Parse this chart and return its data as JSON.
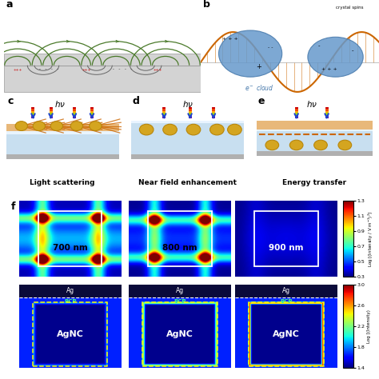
{
  "bg_color": "#ffffff",
  "panel_a_bg": "#d3d3d3",
  "panel_b_bg": "#ffffff",
  "panel_c_label": "Light scattering",
  "panel_d_label": "Near field enhancement",
  "panel_e_label": "Energy transfer",
  "green_arc_color": "#4a7a2a",
  "gray_arc_color": "#555555",
  "orange_wave_color": "#cc6600",
  "blue_sphere_color": "#6699cc",
  "gold_sphere_color": "#d4a520",
  "gold_edge_color": "#b8860b",
  "light_blue_bg": "#c8dff0",
  "peach_bg": "#e8b87a",
  "gray_base_color": "#b0b0b0",
  "dark_navy": "#0a0a3a",
  "top_row_nm_labels": [
    "700 nm",
    "800 nm",
    "900 nm"
  ],
  "colorbar1_min": 0.3,
  "colorbar1_max": 1.3,
  "colorbar1_ticks": [
    0.3,
    0.5,
    0.7,
    0.9,
    1.1,
    1.3
  ],
  "colorbar2_min": 1.4,
  "colorbar2_max": 3.0,
  "colorbar2_ticks": [
    1.4,
    1.8,
    2.2,
    2.6,
    3.0
  ]
}
